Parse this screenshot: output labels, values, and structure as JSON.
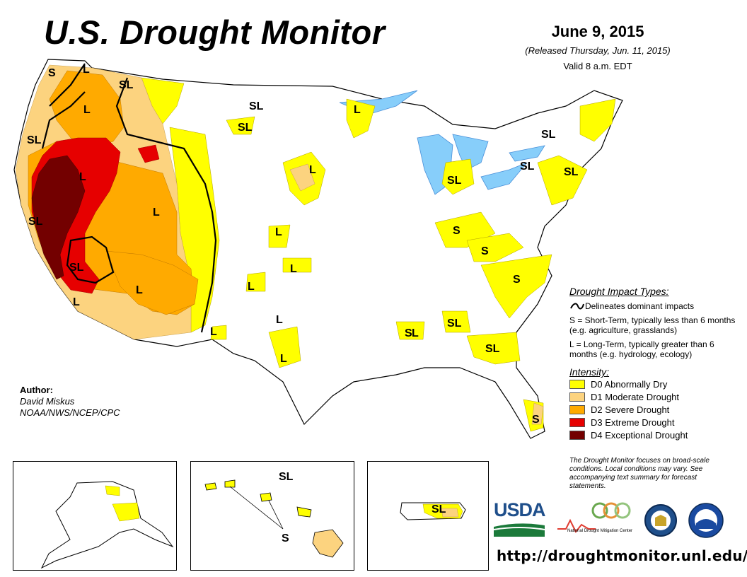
{
  "header": {
    "title": "U.S. Drought Monitor",
    "date": "June 9, 2015",
    "released": "(Released Thursday, Jun. 11, 2015)",
    "valid": "Valid 8 a.m. EDT"
  },
  "author": {
    "heading": "Author:",
    "name": "David Miskus",
    "org": "NOAA/NWS/NCEP/CPC"
  },
  "impact_types": {
    "heading": "Drought Impact Types:",
    "delineates": "Delineates dominant impacts",
    "short_term": "S = Short-Term, typically less than 6 months (e.g. agriculture, grasslands)",
    "long_term": "L = Long-Term, typically greater than 6 months (e.g. hydrology, ecology)"
  },
  "intensity": {
    "heading": "Intensity:",
    "levels": [
      {
        "label": "D0 Abnormally Dry",
        "color": "#ffff00"
      },
      {
        "label": "D1 Moderate Drought",
        "color": "#fcd37f"
      },
      {
        "label": "D2 Severe Drought",
        "color": "#ffaa00"
      },
      {
        "label": "D3 Extreme Drought",
        "color": "#e60000"
      },
      {
        "label": "D4 Exceptional Drought",
        "color": "#730000"
      }
    ]
  },
  "note": "The Drought Monitor focuses on broad-scale conditions. Local conditions may vary. See accompanying text summary for forecast statements.",
  "url": "http://droughtmonitor.unl.edu/",
  "logos": {
    "usda": "USDA",
    "ndmc_line1": "National",
    "ndmc_line2": "Drought Mitigation Center"
  },
  "map_labels": [
    "S",
    "L",
    "SL",
    "SL",
    "L",
    "SL",
    "SL",
    "SL",
    "L",
    "L",
    "L",
    "SL",
    "L",
    "SL",
    "L",
    "L",
    "L",
    "L",
    "L",
    "L",
    "L",
    "SL",
    "S",
    "S",
    "S",
    "SL",
    "SL",
    "SL",
    "S",
    "SL",
    "SL",
    "L",
    "SL",
    "S",
    "SL"
  ],
  "colors": {
    "d0": "#ffff00",
    "d1": "#fcd37f",
    "d2": "#ffaa00",
    "d3": "#e60000",
    "d4": "#730000",
    "water": "#87cefa",
    "state_line": "#9b9b9b",
    "river": "#4a90d9"
  }
}
